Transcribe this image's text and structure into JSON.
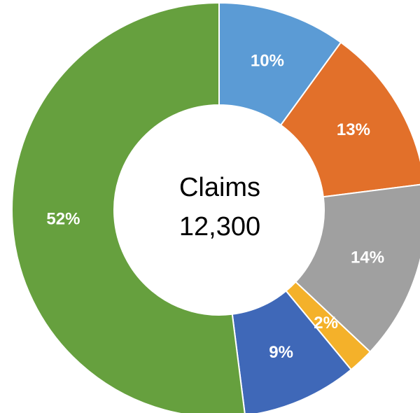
{
  "chart_data": {
    "type": "donut",
    "values": [
      10,
      13,
      14,
      2,
      9,
      52
    ],
    "value_labels": [
      "10%",
      "13%",
      "14%",
      "2%",
      "9%",
      "52%"
    ],
    "colors": [
      "#5b9bd5",
      "#e2702a",
      "#a0a0a0",
      "#f4b12a",
      "#3f68b8",
      "#66a03e"
    ],
    "center_text": [
      "Claims",
      "12,300"
    ]
  }
}
